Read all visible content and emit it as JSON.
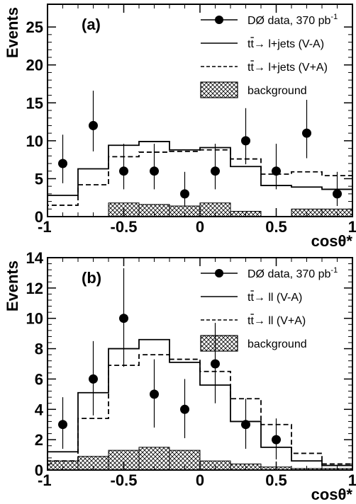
{
  "colors": {
    "foreground": "#000000",
    "background": "#ffffff"
  },
  "chart_data": [
    {
      "type": "histogram",
      "panel_label": "(a)",
      "xlabel": "cosθ*",
      "ylabel": "Events",
      "xlim": [
        -1,
        1
      ],
      "ylim": [
        0,
        28
      ],
      "xticks": [
        -1,
        -0.5,
        0,
        0.5,
        1
      ],
      "xtick_labels": [
        "-1",
        "-0.5",
        "0",
        "0.5",
        "1"
      ],
      "yticks": [
        0,
        5,
        10,
        15,
        20,
        25
      ],
      "ytick_labels": [
        "0",
        "5",
        "10",
        "15",
        "20",
        "25"
      ],
      "bin_edges": [
        -1,
        -0.8,
        -0.6,
        -0.4,
        -0.2,
        0,
        0.2,
        0.4,
        0.6,
        0.8,
        1
      ],
      "data_points": {
        "label": "DØ data, 370 pb",
        "label_sup": "-1",
        "x": [
          -0.9,
          -0.7,
          -0.5,
          -0.3,
          -0.1,
          0.1,
          0.3,
          0.5,
          0.7,
          0.9
        ],
        "y": [
          7,
          12,
          6,
          6,
          3,
          6,
          10,
          6,
          11,
          3
        ],
        "yerr_low": [
          2.6,
          3.4,
          2.4,
          2.4,
          1.6,
          2.4,
          3.1,
          2.4,
          3.3,
          1.6
        ],
        "yerr_high": [
          3.8,
          4.6,
          3.6,
          3.6,
          2.9,
          3.6,
          4.3,
          3.6,
          4.4,
          2.9
        ]
      },
      "series": [
        {
          "label_pre": "tt",
          "label_post": "→ l+jets (V-A)",
          "style": "solid",
          "values": [
            2.8,
            6.3,
            9.4,
            9.9,
            8.8,
            9.1,
            6.6,
            4.1,
            3.9,
            3.6
          ]
        },
        {
          "label_pre": "tt",
          "label_post": "→ l+jets (V+A)",
          "style": "dashed",
          "values": [
            1.5,
            4.2,
            7.9,
            8.5,
            8.6,
            8.8,
            7.6,
            5.6,
            5.9,
            5.4
          ]
        },
        {
          "label": "background",
          "style": "hatched",
          "values": [
            0,
            0,
            1.8,
            1.6,
            1.4,
            1.8,
            0.7,
            0,
            1.0,
            1.0
          ]
        }
      ]
    },
    {
      "type": "histogram",
      "panel_label": "(b)",
      "xlabel": "cosθ*",
      "ylabel": "Events",
      "xlim": [
        -1,
        1
      ],
      "ylim": [
        0,
        14
      ],
      "xticks": [
        -1,
        -0.5,
        0,
        0.5,
        1
      ],
      "xtick_labels": [
        "-1",
        "-0.5",
        "0",
        "0.5",
        "1"
      ],
      "yticks": [
        0,
        2,
        4,
        6,
        8,
        10,
        12,
        14
      ],
      "ytick_labels": [
        "0",
        "2",
        "4",
        "6",
        "8",
        "10",
        "12",
        "14"
      ],
      "bin_edges": [
        -1,
        -0.8,
        -0.6,
        -0.4,
        -0.2,
        0,
        0.2,
        0.4,
        0.6,
        0.8,
        1
      ],
      "data_points": {
        "label": "DØ data, 370 pb",
        "label_sup": "-1",
        "x": [
          -0.9,
          -0.7,
          -0.5,
          -0.3,
          -0.1,
          0.1,
          0.3,
          0.5
        ],
        "y": [
          3,
          6,
          10,
          5,
          4,
          7,
          3,
          2
        ],
        "yerr_low": [
          1.6,
          2.4,
          3.2,
          2.2,
          1.9,
          2.6,
          1.6,
          1.3
        ],
        "yerr_high": [
          1.8,
          2.5,
          3.3,
          2.3,
          2.0,
          2.7,
          1.7,
          1.4
        ]
      },
      "series": [
        {
          "label_pre": "tt",
          "label_post": "→ ll (V-A)",
          "style": "solid",
          "values": [
            1.2,
            5.1,
            8.0,
            8.6,
            7.1,
            5.6,
            3.2,
            1.5,
            0.6,
            0.3
          ]
        },
        {
          "label_pre": "tt",
          "label_post": "→ ll (V+A)",
          "style": "dashed",
          "values": [
            0.6,
            3.4,
            6.9,
            7.6,
            7.3,
            6.5,
            4.7,
            3.0,
            1.1,
            0.4
          ]
        },
        {
          "label": "background",
          "style": "hatched",
          "values": [
            0.6,
            0.9,
            1.3,
            1.5,
            1.3,
            0.6,
            0.4,
            0.2,
            0.1,
            0.1
          ]
        }
      ]
    }
  ]
}
